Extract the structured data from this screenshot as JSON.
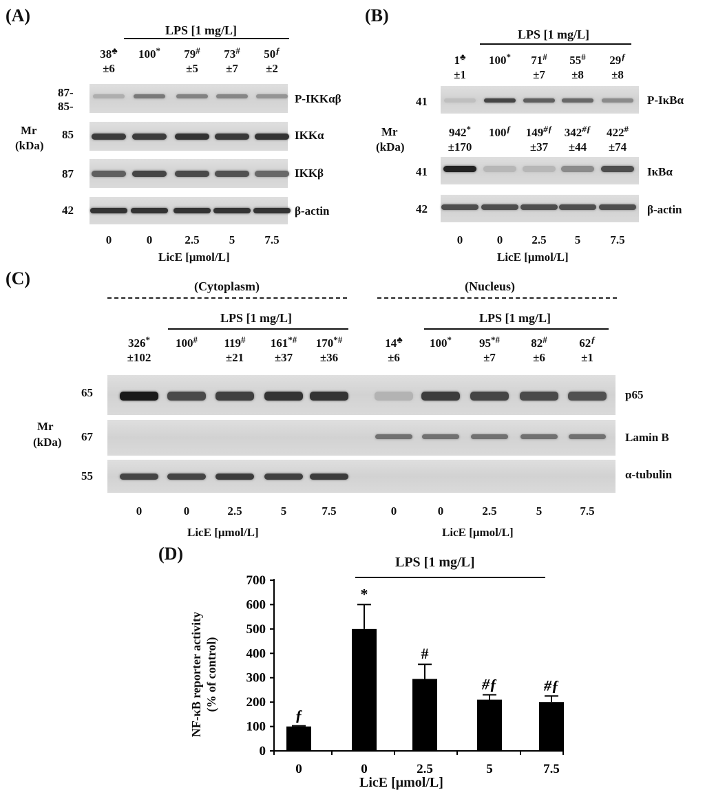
{
  "panels": {
    "A": {
      "label": "(A)",
      "lps_label": "LPS [1 mg/L]",
      "values": [
        {
          "main": "38",
          "sup": "♣",
          "sd": "±6"
        },
        {
          "main": "100",
          "sup": "*",
          "sd": ""
        },
        {
          "main": "79",
          "sup": "#",
          "sd": "±5"
        },
        {
          "main": "73",
          "sup": "#",
          "sd": "±7"
        },
        {
          "main": "50",
          "sup": "ƒ",
          "sd": "±2"
        }
      ],
      "mr_label": "Mr",
      "mr_unit": "(kDa)",
      "blots": [
        {
          "mw": "87-",
          "mw2": "85-",
          "protein": "P-IKKαβ"
        },
        {
          "mw": "85",
          "protein": "IKKα"
        },
        {
          "mw": "87",
          "protein": "IKKβ"
        },
        {
          "mw": "42",
          "protein": "β-actin"
        }
      ],
      "x_ticks": [
        "0",
        "0",
        "2.5",
        "5",
        "7.5"
      ],
      "x_label": "LicE [μmol/L]"
    },
    "B": {
      "label": "(B)",
      "lps_label": "LPS [1 mg/L]",
      "values_top": [
        {
          "main": "1",
          "sup": "♣",
          "sd": "±1"
        },
        {
          "main": "100",
          "sup": "*",
          "sd": ""
        },
        {
          "main": "71",
          "sup": "#",
          "sd": "±7"
        },
        {
          "main": "55",
          "sup": "#",
          "sd": "±8"
        },
        {
          "main": "29",
          "sup": "ƒ",
          "sd": "±8"
        }
      ],
      "values_mid": [
        {
          "main": "942",
          "sup": "*",
          "sd": "±170"
        },
        {
          "main": "100",
          "sup": "ƒ",
          "sd": ""
        },
        {
          "main": "149",
          "sup": "#ƒ",
          "sd": "±37"
        },
        {
          "main": "342",
          "sup": "#ƒ",
          "sd": "±44"
        },
        {
          "main": "422",
          "sup": "#",
          "sd": "±74"
        }
      ],
      "mr_label": "Mr",
      "mr_unit": "(kDa)",
      "blots": [
        {
          "mw": "41",
          "protein": "P-IκBα"
        },
        {
          "mw": "41",
          "protein": "IκBα"
        },
        {
          "mw": "42",
          "protein": "β-actin"
        }
      ],
      "x_ticks": [
        "0",
        "0",
        "2.5",
        "5",
        "7.5"
      ],
      "x_label": "LicE [μmol/L]"
    },
    "C": {
      "label": "(C)",
      "cytoplasm_label": "(Cytoplasm)",
      "nucleus_label": "(Nucleus)",
      "lps_label": "LPS [1 mg/L]",
      "cyto_values": [
        {
          "main": "326",
          "sup": "*",
          "sd": "±102"
        },
        {
          "main": "100",
          "sup": "#",
          "sd": ""
        },
        {
          "main": "119",
          "sup": "#",
          "sd": "±21"
        },
        {
          "main": "161",
          "sup": "*#",
          "sd": "±37"
        },
        {
          "main": "170",
          "sup": "*#",
          "sd": "±36"
        }
      ],
      "nuc_values": [
        {
          "main": "14",
          "sup": "♣",
          "sd": "±6"
        },
        {
          "main": "100",
          "sup": "*",
          "sd": ""
        },
        {
          "main": "95",
          "sup": "*#",
          "sd": "±7"
        },
        {
          "main": "82",
          "sup": "#",
          "sd": "±6"
        },
        {
          "main": "62",
          "sup": "ƒ",
          "sd": "±1"
        }
      ],
      "mr_label": "Mr",
      "mr_unit": "(kDa)",
      "blots": [
        {
          "mw": "65",
          "protein": "p65"
        },
        {
          "mw": "67",
          "protein": "Lamin B"
        },
        {
          "mw": "55",
          "protein": "α-tubulin"
        }
      ],
      "x_ticks": [
        "0",
        "0",
        "2.5",
        "5",
        "7.5",
        "0",
        "0",
        "2.5",
        "5",
        "7.5"
      ],
      "x_label": "LicE [μmol/L]"
    },
    "D": {
      "label": "(D)",
      "lps_label": "LPS [1 mg/L]"
    }
  },
  "chart_data": {
    "type": "bar",
    "categories": [
      "0",
      "0",
      "2.5",
      "5",
      "7.5"
    ],
    "values": [
      100,
      500,
      295,
      210,
      200
    ],
    "errors": [
      3,
      100,
      60,
      20,
      25
    ],
    "bar_annotations": [
      "ƒ",
      "*",
      "#",
      "#ƒ",
      "#ƒ"
    ],
    "xlabel": "LicE [μmol/L]",
    "ylabel_line1": "NF-κB reporter activity",
    "ylabel_line2": "(% of control)",
    "ylim": [
      0,
      700
    ],
    "yticks": [
      0,
      100,
      200,
      300,
      400,
      500,
      600,
      700
    ],
    "grid": false,
    "bar_color": "#000000"
  }
}
